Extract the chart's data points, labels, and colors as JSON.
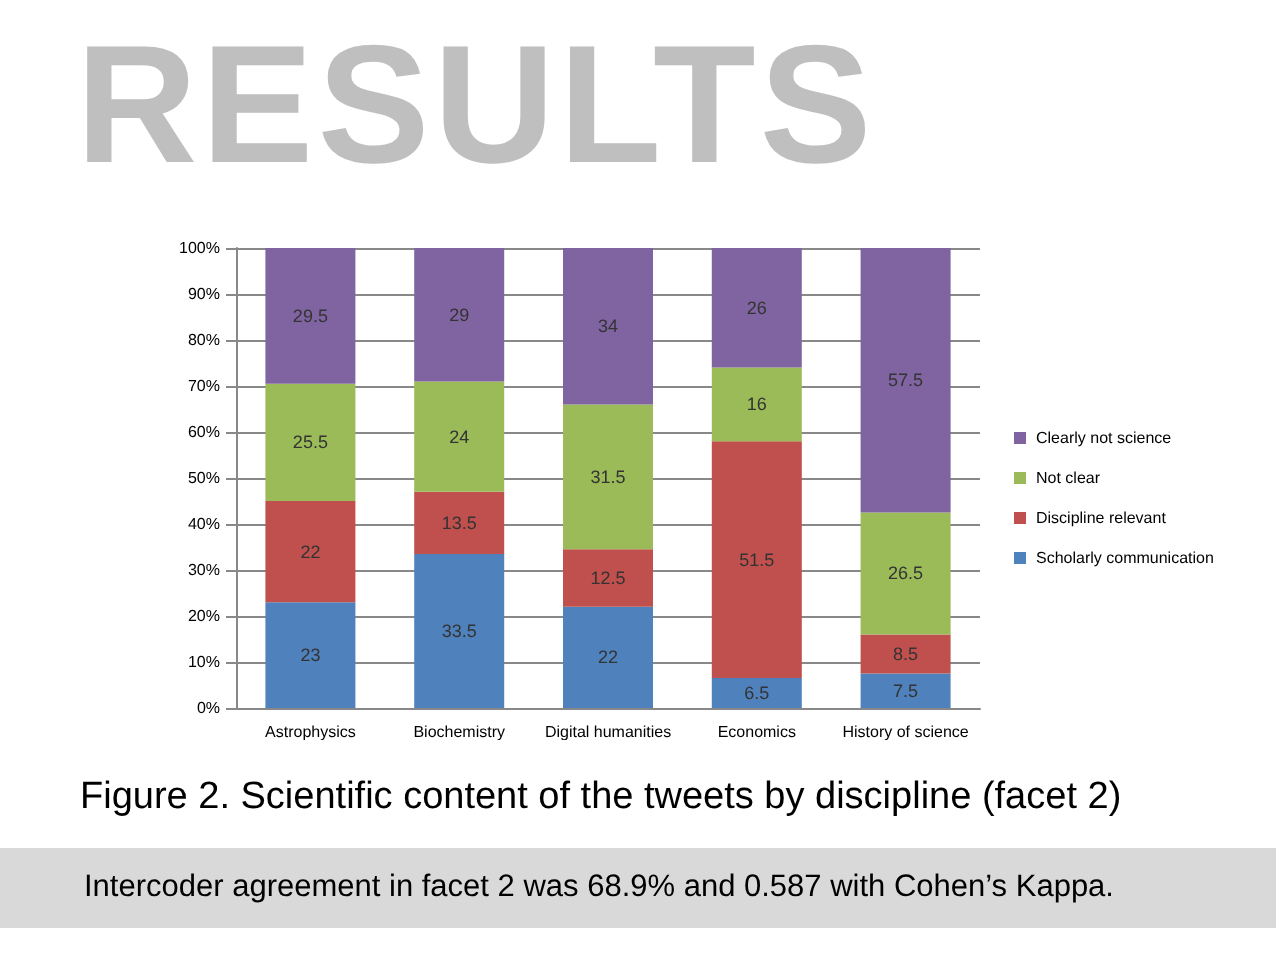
{
  "chart_data": {
    "type": "bar",
    "title": "RESULTS",
    "stacked": true,
    "data_labels": true,
    "grid": "y",
    "legend": "right",
    "categories": [
      "Astrophysics",
      "Biochemistry",
      "Digital humanities",
      "Economics",
      "History of science"
    ],
    "series": [
      {
        "name": "Scholarly communication",
        "color": "#4f81bd",
        "values": [
          23,
          33.5,
          22,
          6.5,
          7.5
        ]
      },
      {
        "name": "Discipline relevant",
        "color": "#c0504d",
        "values": [
          22,
          13.5,
          12.5,
          51.5,
          8.5
        ]
      },
      {
        "name": "Not clear",
        "color": "#9bbb59",
        "values": [
          25.5,
          24,
          31.5,
          16,
          26.5
        ]
      },
      {
        "name": "Clearly not science",
        "color": "#8064a2",
        "values": [
          29.5,
          29,
          34,
          26,
          57.5
        ]
      }
    ],
    "ylim": [
      0,
      100
    ],
    "yticks": [
      {
        "value": 0,
        "label": "0%"
      },
      {
        "value": 10,
        "label": "10%"
      },
      {
        "value": 20,
        "label": "20%"
      },
      {
        "value": 30,
        "label": "30%"
      },
      {
        "value": 40,
        "label": "40%"
      },
      {
        "value": 50,
        "label": "50%"
      },
      {
        "value": 60,
        "label": "60%"
      },
      {
        "value": 70,
        "label": "70%"
      },
      {
        "value": 80,
        "label": "80%"
      },
      {
        "value": 90,
        "label": "90%"
      },
      {
        "value": 100,
        "label": "100%"
      }
    ],
    "annotations": [
      "Figure 2. Scientific content of the tweets by discipline (facet 2)",
      "Intercoder agreement in facet 2 was 68.9% and 0.587 with Cohen’s Kappa."
    ]
  }
}
